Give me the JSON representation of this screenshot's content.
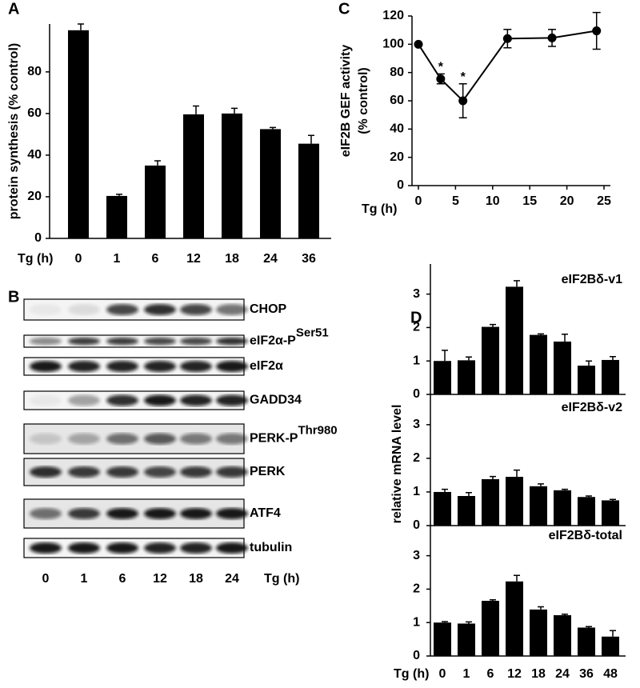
{
  "chart_data": [
    {
      "type": "bar",
      "label": "A",
      "ylabel": "protein synthesis (% control)",
      "xlabel": "Tg (h)",
      "categories": [
        "0",
        "1",
        "6",
        "12",
        "18",
        "24",
        "36"
      ],
      "values": [
        100,
        20.4,
        35,
        59.6,
        60,
        52.5,
        45.5
      ],
      "errors": [
        3,
        0.8,
        2.3,
        4,
        2.5,
        0.8,
        4
      ],
      "color": "#000000",
      "ylim": [
        0,
        103
      ],
      "yticks": [
        0,
        20,
        40,
        60,
        80
      ]
    },
    {
      "type": "line",
      "label": "C",
      "ylabel": [
        "eIF2B GEF activity",
        "(% control)"
      ],
      "xlabel": "Tg (h)",
      "x": [
        0,
        3,
        6,
        12,
        18,
        24
      ],
      "values": [
        100,
        75.5,
        60,
        104,
        104.5,
        109.5
      ],
      "errors": [
        0,
        3.5,
        12,
        6.5,
        6,
        13
      ],
      "color": "#000000",
      "annotations": [
        {
          "text": "*",
          "x": 3
        },
        {
          "text": "*",
          "x": 6
        }
      ],
      "xlim": [
        0,
        25
      ],
      "xticks": [
        0,
        5,
        10,
        15,
        20,
        25
      ],
      "ylim": [
        0,
        120
      ],
      "yticks": [
        0,
        20,
        40,
        60,
        80,
        100,
        120
      ]
    },
    {
      "type": "bar",
      "label": "D",
      "title": "eIF2Bδ-v1",
      "values": [
        1.0,
        1.02,
        2.02,
        3.22,
        1.78,
        1.58,
        0.86,
        1.03
      ],
      "errors": [
        0.32,
        0.1,
        0.07,
        0.18,
        0.03,
        0.22,
        0.14,
        0.1
      ],
      "color": "#000000",
      "ylim": [
        0,
        3.9
      ],
      "yticks": [
        0,
        1,
        2,
        3
      ]
    },
    {
      "type": "bar",
      "title": "eIF2Bδ-v2",
      "ylabel": "relative mRNA level",
      "values": [
        1.0,
        0.88,
        1.38,
        1.45,
        1.17,
        1.05,
        0.85,
        0.75
      ],
      "errors": [
        0.08,
        0.1,
        0.08,
        0.2,
        0.07,
        0.03,
        0.03,
        0.03
      ],
      "color": "#000000",
      "ylim": [
        0,
        3.9
      ],
      "yticks": [
        0,
        1,
        2,
        3
      ]
    },
    {
      "type": "bar",
      "title": "eIF2Bδ-total",
      "xlabel": "Tg (h)",
      "categories": [
        "0",
        "1",
        "6",
        "12",
        "18",
        "24",
        "36",
        "48"
      ],
      "values": [
        1.0,
        0.97,
        1.65,
        2.23,
        1.39,
        1.22,
        0.85,
        0.58
      ],
      "errors": [
        0.03,
        0.05,
        0.03,
        0.18,
        0.08,
        0.03,
        0.03,
        0.18
      ],
      "color": "#000000",
      "ylim": [
        0,
        3.9
      ],
      "yticks": [
        0,
        1,
        2,
        3
      ]
    }
  ],
  "blot": {
    "label": "B",
    "xlabel": "Tg (h)",
    "lanes": [
      "0",
      "1",
      "6",
      "12",
      "18",
      "24"
    ],
    "rows": [
      {
        "text": "CHOP"
      },
      {
        "text": "eIF2α-P",
        "sup": "Ser51"
      },
      {
        "text": "eIF2α"
      },
      {
        "text": "GADD34"
      },
      {
        "text": "PERK-P",
        "sup": "Thr980"
      },
      {
        "text": "PERK"
      },
      {
        "text": "ATF4"
      },
      {
        "text": "tubulin"
      }
    ]
  }
}
